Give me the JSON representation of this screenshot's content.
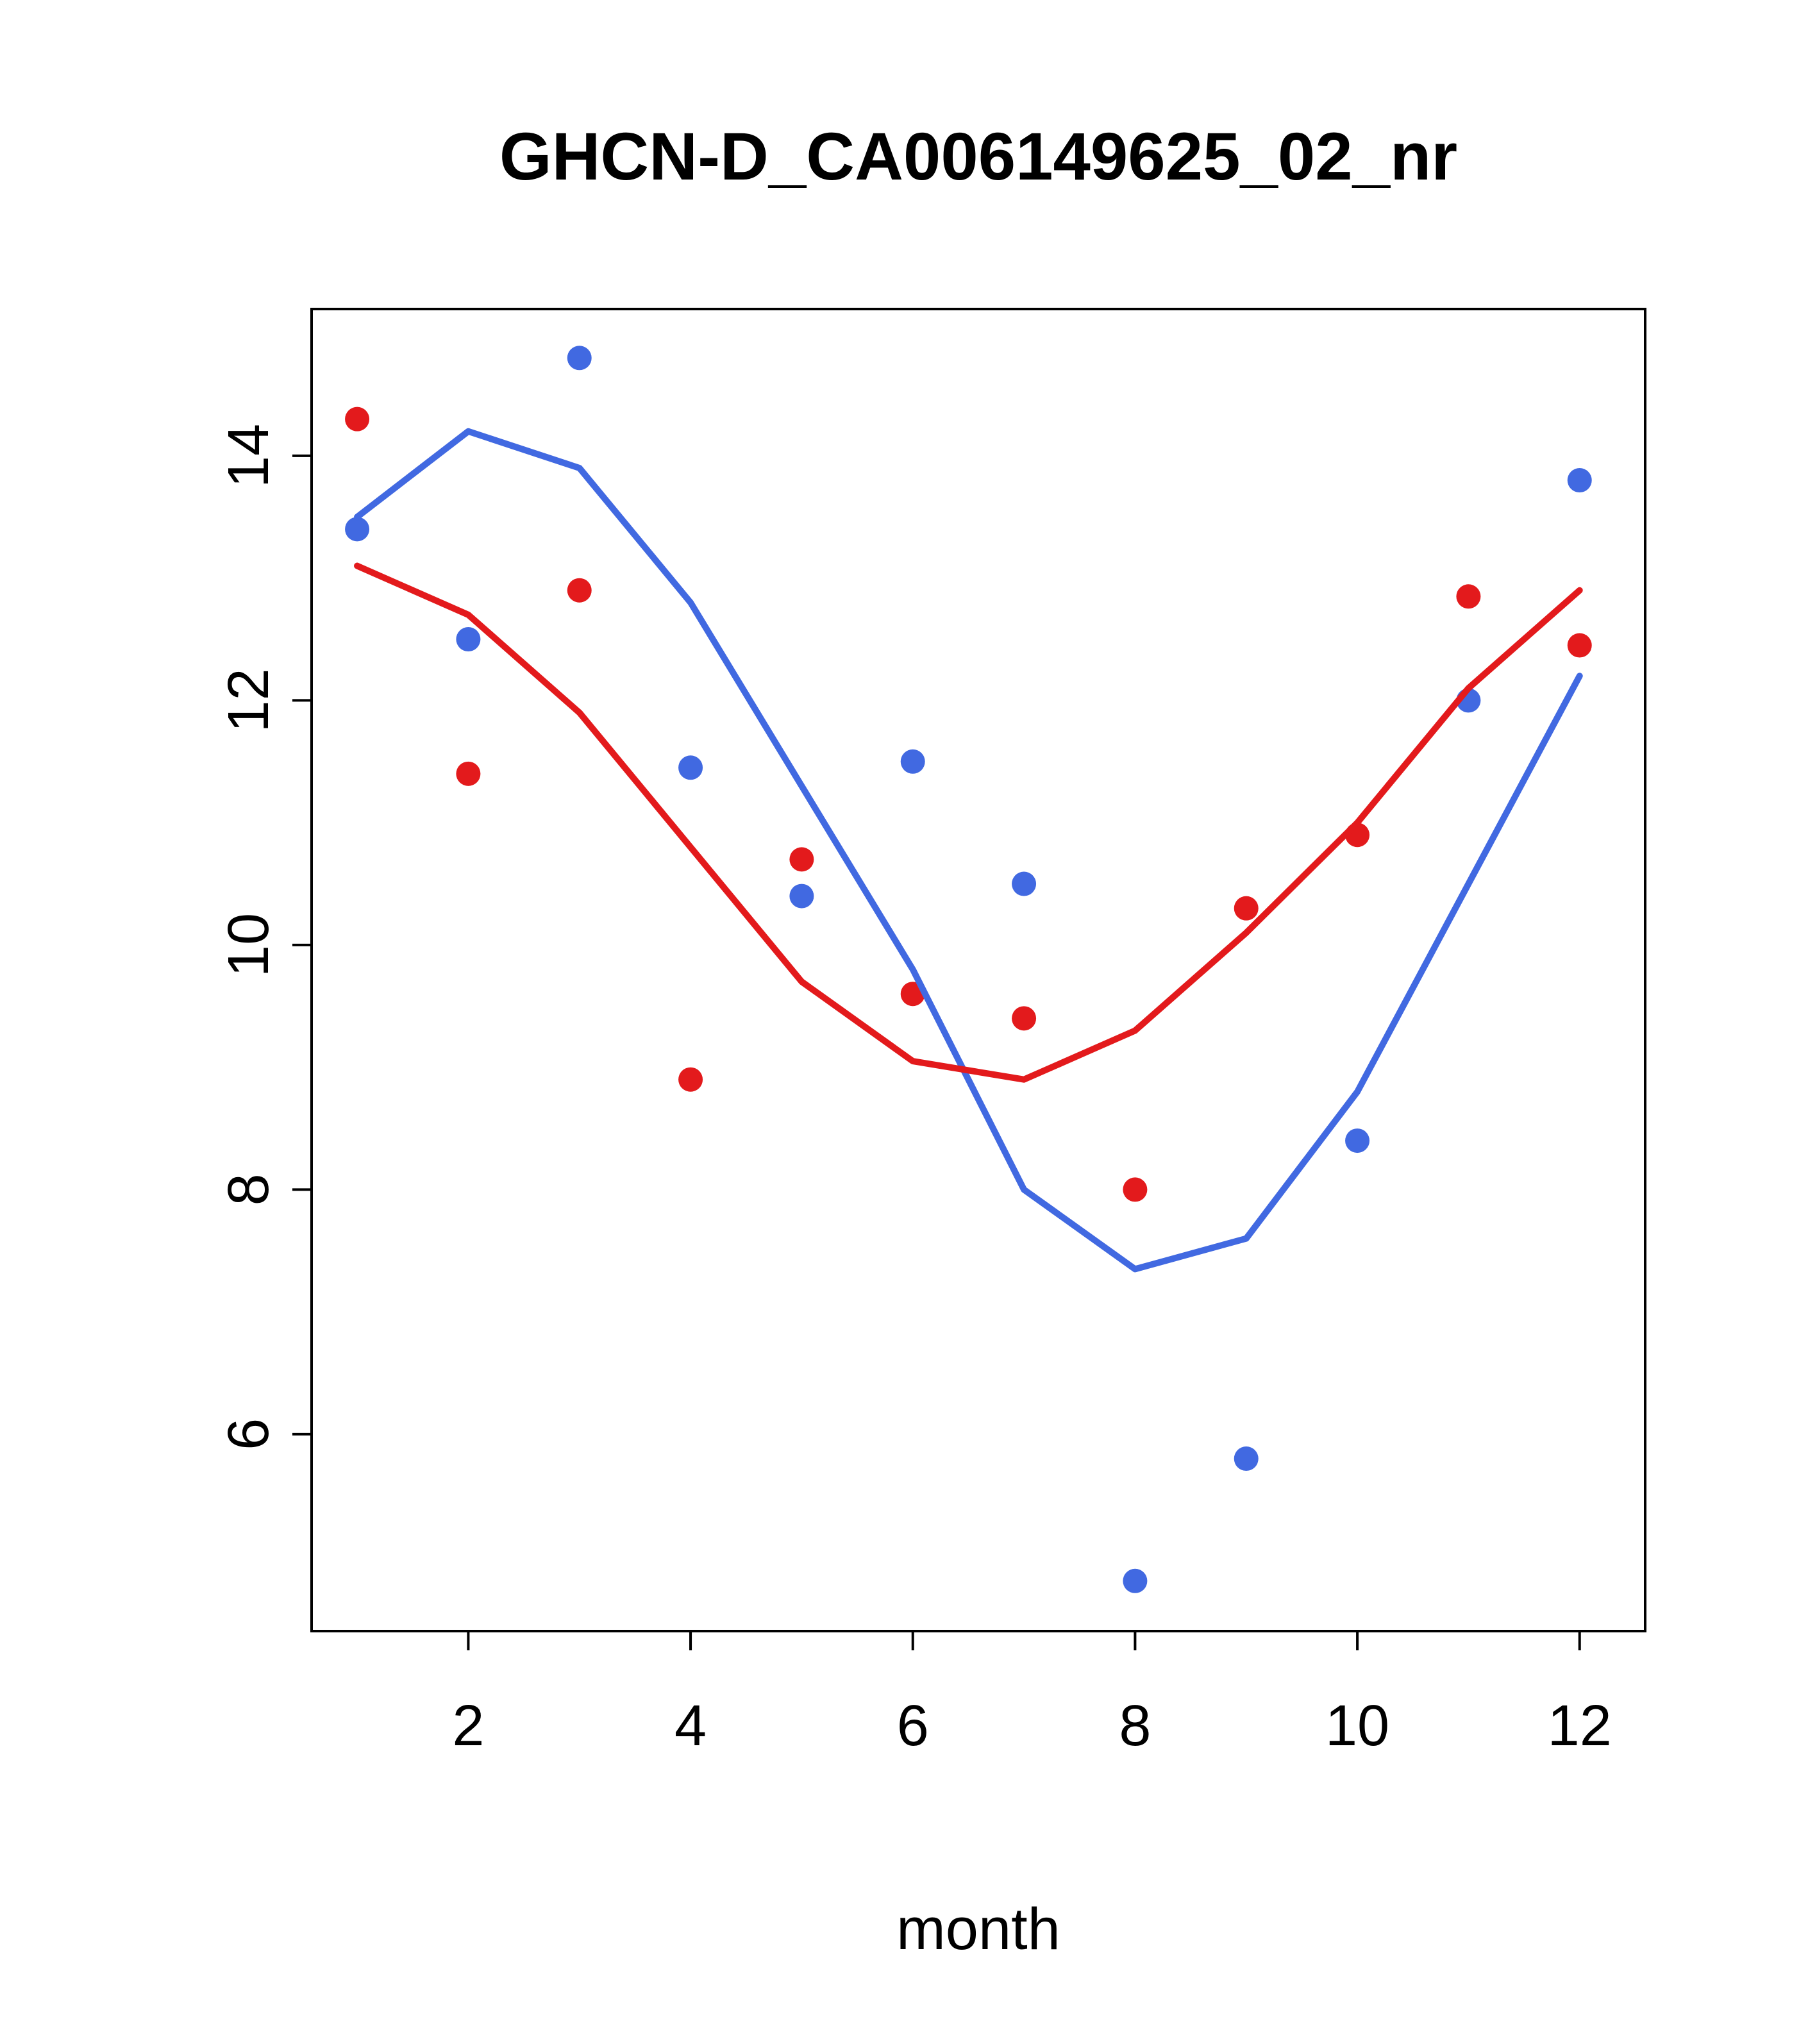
{
  "chart_data": {
    "type": "scatter",
    "title": "GHCN-D_CA006149625_02_nr",
    "xlabel": "month",
    "ylabel": "",
    "xlim": [
      0.59,
      12.59
    ],
    "ylim": [
      4.39,
      15.2
    ],
    "xticks": [
      2,
      4,
      6,
      8,
      10,
      12
    ],
    "yticks": [
      6,
      8,
      10,
      12,
      14
    ],
    "grid": false,
    "legend": "none",
    "x": [
      1,
      2,
      3,
      4,
      5,
      6,
      7,
      8,
      9,
      10,
      11,
      12
    ],
    "colors": {
      "blue": "#4169E1",
      "red": "#E31A1C"
    },
    "series": [
      {
        "name": "blue-points",
        "type": "points",
        "color": "#4169E1",
        "values": [
          13.4,
          12.5,
          14.8,
          11.45,
          10.4,
          11.5,
          10.5,
          4.8,
          5.8,
          8.4,
          12.0,
          13.8
        ]
      },
      {
        "name": "red-points",
        "type": "points",
        "color": "#E31A1C",
        "values": [
          14.3,
          11.4,
          12.9,
          8.9,
          10.7,
          9.6,
          9.4,
          8.0,
          10.3,
          10.9,
          12.85,
          12.45
        ]
      },
      {
        "name": "blue-trend-line",
        "type": "line",
        "color": "#4169E1",
        "values": [
          13.5,
          14.2,
          13.9,
          12.8,
          11.3,
          9.8,
          8.0,
          7.35,
          7.6,
          8.8,
          10.5,
          12.2
        ]
      },
      {
        "name": "red-trend-line",
        "type": "line",
        "color": "#E31A1C",
        "values": [
          13.1,
          12.7,
          11.9,
          10.8,
          9.7,
          9.05,
          8.9,
          9.3,
          10.1,
          11.0,
          12.1,
          12.9
        ]
      }
    ]
  }
}
